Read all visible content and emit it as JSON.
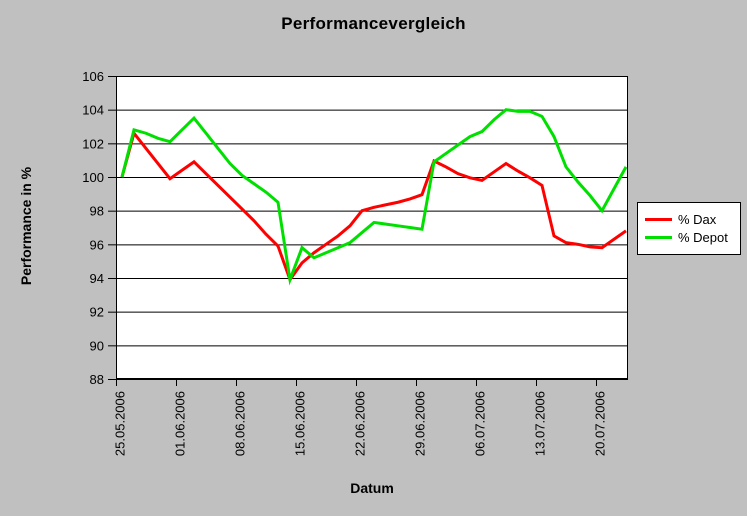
{
  "chart_data": {
    "type": "line",
    "title": "Performancevergleich",
    "xlabel": "Datum",
    "ylabel": "Performance in %",
    "ylim": [
      88,
      106
    ],
    "y_tick_step": 2,
    "y_tick_labels": [
      "88",
      "90",
      "92",
      "94",
      "96",
      "98",
      "100",
      "102",
      "104",
      "106"
    ],
    "grid": true,
    "plot_bg": "#ffffff",
    "page_bg": "#c0c0c0",
    "axis_color": "#000000",
    "legend_position": "right",
    "x_tick_labels": [
      "25.05.2006",
      "01.06.2006",
      "08.06.2006",
      "15.06.2006",
      "22.06.2006",
      "29.06.2006",
      "06.07.2006",
      "13.07.2006",
      "20.07.2006"
    ],
    "x_tick_day_index": [
      0,
      5,
      10,
      15,
      20,
      25,
      30,
      35,
      40
    ],
    "x_unit": "trading days; one tick per week, data runs approx. 25.05.2006 - 24.07.2006",
    "series": [
      {
        "name": "% Dax",
        "color": "#ff0000",
        "values": [
          100.0,
          102.6,
          101.7,
          100.8,
          99.9,
          100.4,
          100.9,
          100.2,
          99.5,
          98.8,
          98.1,
          97.4,
          96.6,
          95.9,
          93.9,
          94.9,
          95.5,
          96.0,
          96.5,
          97.1,
          98.0,
          98.2,
          98.35,
          98.5,
          98.7,
          98.95,
          100.95,
          100.6,
          100.2,
          99.95,
          99.8,
          100.3,
          100.8,
          100.35,
          99.95,
          99.5,
          96.5,
          96.1,
          96.0,
          95.85,
          95.8,
          96.3,
          96.8
        ]
      },
      {
        "name": "% Depot",
        "color": "#00e000",
        "values": [
          100.0,
          102.8,
          102.6,
          102.3,
          102.1,
          102.8,
          103.5,
          102.6,
          101.7,
          100.8,
          100.1,
          99.6,
          99.1,
          98.5,
          93.9,
          95.8,
          95.2,
          95.5,
          95.8,
          96.1,
          96.7,
          97.3,
          97.2,
          97.1,
          97.0,
          96.9,
          100.9,
          101.4,
          101.9,
          102.4,
          102.7,
          103.4,
          104.0,
          103.9,
          103.9,
          103.6,
          102.4,
          100.6,
          99.7,
          98.9,
          98.0,
          99.3,
          100.6
        ]
      }
    ]
  }
}
